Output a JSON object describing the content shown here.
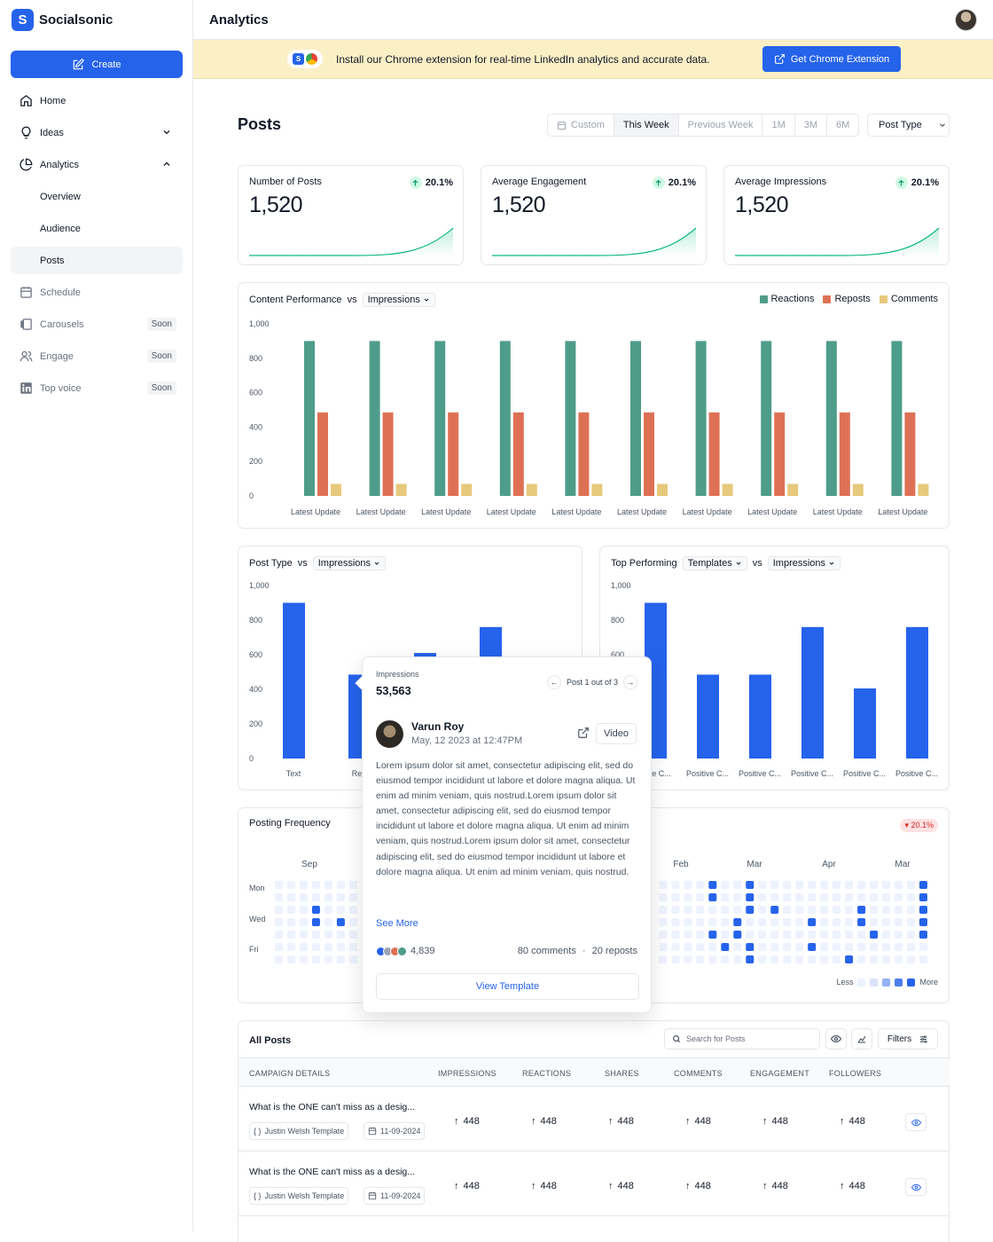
{
  "brand": {
    "name": "Socialsonic",
    "mark": "S"
  },
  "sidebar": {
    "create_label": "Create",
    "items": [
      {
        "label": "Home",
        "icon": "home-icon"
      },
      {
        "label": "Ideas",
        "icon": "lightbulb-icon"
      },
      {
        "label": "Analytics",
        "icon": "pie-chart-icon"
      },
      {
        "label": "Overview"
      },
      {
        "label": "Audience"
      },
      {
        "label": "Posts"
      },
      {
        "label": "Schedule",
        "icon": "calendar-icon"
      },
      {
        "label": "Carousels",
        "icon": "carousel-icon",
        "badge": "Soon"
      },
      {
        "label": "Engage",
        "icon": "users-icon",
        "badge": "Soon"
      },
      {
        "label": "Top voice",
        "icon": "linkedin-icon",
        "badge": "Soon"
      }
    ]
  },
  "header": {
    "title": "Analytics"
  },
  "banner": {
    "text": "Install our Chrome extension for real-time LinkedIn analytics and accurate data.",
    "button": "Get Chrome Extension"
  },
  "posts": {
    "title": "Posts",
    "ranges": [
      "Custom",
      "This Week",
      "Previous Week",
      "1M",
      "3M",
      "6M"
    ],
    "selected_range": "This Week",
    "post_type_label": "Post Type"
  },
  "stats": [
    {
      "label": "Number of Posts",
      "value": "1,520",
      "change": "20.1%"
    },
    {
      "label": "Average Engagement",
      "value": "1,520",
      "change": "20.1%"
    },
    {
      "label": "Average Impressions",
      "value": "1,520",
      "change": "20.1%"
    }
  ],
  "content_performance": {
    "title": "Content Performance",
    "vs": "vs",
    "metric": "Impressions",
    "legend": [
      "Reactions",
      "Reposts",
      "Comments"
    ]
  },
  "post_type_chart": {
    "title": "Post Type",
    "vs": "vs",
    "metric": "Impressions"
  },
  "top_performing_chart": {
    "title": "Top Performing",
    "group": "Templates",
    "vs": "vs",
    "metric": "Impressions"
  },
  "colors": {
    "accent": "#2563eb",
    "reactions": "#4e9c8a",
    "reposts": "#de7155",
    "comments": "#e7c97c"
  },
  "chart_data": [
    {
      "type": "bar",
      "categories": [
        "Latest Update",
        "Latest Update",
        "Latest Update",
        "Latest Update",
        "Latest Update",
        "Latest Update",
        "Latest Update",
        "Latest Update",
        "Latest Update",
        "Latest Update"
      ],
      "series": [
        {
          "name": "Reactions",
          "values": [
            900,
            900,
            900,
            900,
            900,
            900,
            900,
            900,
            900,
            900
          ]
        },
        {
          "name": "Reposts",
          "values": [
            485,
            485,
            485,
            485,
            485,
            485,
            485,
            485,
            485,
            485
          ]
        },
        {
          "name": "Comments",
          "values": [
            70,
            70,
            70,
            70,
            70,
            70,
            70,
            70,
            70,
            70
          ]
        }
      ],
      "yticks": [
        "0",
        "200",
        "400",
        "600",
        "800",
        "1,000"
      ],
      "ylim": [
        0,
        1000
      ]
    },
    {
      "type": "bar",
      "categories": [
        "Text",
        "Rep",
        "",
        ""
      ],
      "values": [
        900,
        485,
        610,
        760
      ],
      "yticks": [
        "0",
        "200",
        "400",
        "600",
        "800",
        "1,000"
      ],
      "ylim": [
        0,
        1000
      ]
    },
    {
      "type": "bar",
      "categories": [
        "",
        "Positive C...",
        "Positive C...",
        "Positive C...",
        "Positive C...",
        "Positive C..."
      ],
      "first_category_visible": "...ive C...",
      "values": [
        900,
        485,
        485,
        760,
        405,
        760
      ],
      "yticks": [
        "0",
        "200",
        "400",
        "600",
        "800",
        "1,000"
      ],
      "ylim": [
        0,
        1000
      ]
    },
    {
      "type": "heatmap",
      "months": [
        "Sep",
        "Feb",
        "Mar",
        "Apr",
        "Mar"
      ],
      "days": [
        "Mon",
        "Wed",
        "Fri"
      ]
    }
  ],
  "popover": {
    "label": "Impressions",
    "value": "53,563",
    "pager": "Post 1 out of 3",
    "author": "Varun Roy",
    "date": "May, 12 2023 at 12:47PM",
    "type": "Video",
    "body": "Lorem ipsum dolor sit amet, consectetur adipiscing elit, sed do eiusmod tempor incididunt ut labore et dolore magna aliqua. Ut enim ad minim veniam, quis nostrud.Lorem ipsum dolor sit amet, consectetur adipiscing elit, sed do eiusmod tempor incididunt ut labore et dolore magna aliqua. Ut enim ad minim veniam, quis nostrud.Lorem ipsum dolor sit amet, consectetur adipiscing elit, sed do eiusmod tempor incididunt ut labore et dolore magna aliqua. Ut enim ad minim veniam, quis nostrud.",
    "see_more": "See More",
    "reactions": "4,839",
    "comments": "80 comments",
    "sep": "·",
    "reposts": "20 reposts",
    "button": "View Template"
  },
  "frequency": {
    "title": "Posting Frequency",
    "change": "20.1%",
    "less": "Less",
    "more": "More"
  },
  "table": {
    "title": "All Posts",
    "search_placeholder": "Search for Posts",
    "filters_label": "Filters",
    "columns": [
      "CAMPAIGN DETAILS",
      "IMPRESSIONS",
      "REACTIONS",
      "SHARES",
      "COMMENTS",
      "ENGAGEMENT",
      "FOLLOWERS"
    ],
    "rows": [
      {
        "title": "What is the ONE can't miss as a desig...",
        "template": "Justin Welsh Template",
        "date": "11-09-2024",
        "values": [
          "448",
          "448",
          "448",
          "448",
          "448",
          "448"
        ]
      },
      {
        "title": "What is the ONE can't miss as a desig...",
        "template": "Justin Welsh Template",
        "date": "11-09-2024",
        "values": [
          "448",
          "448",
          "448",
          "448",
          "448",
          "448"
        ]
      }
    ]
  }
}
